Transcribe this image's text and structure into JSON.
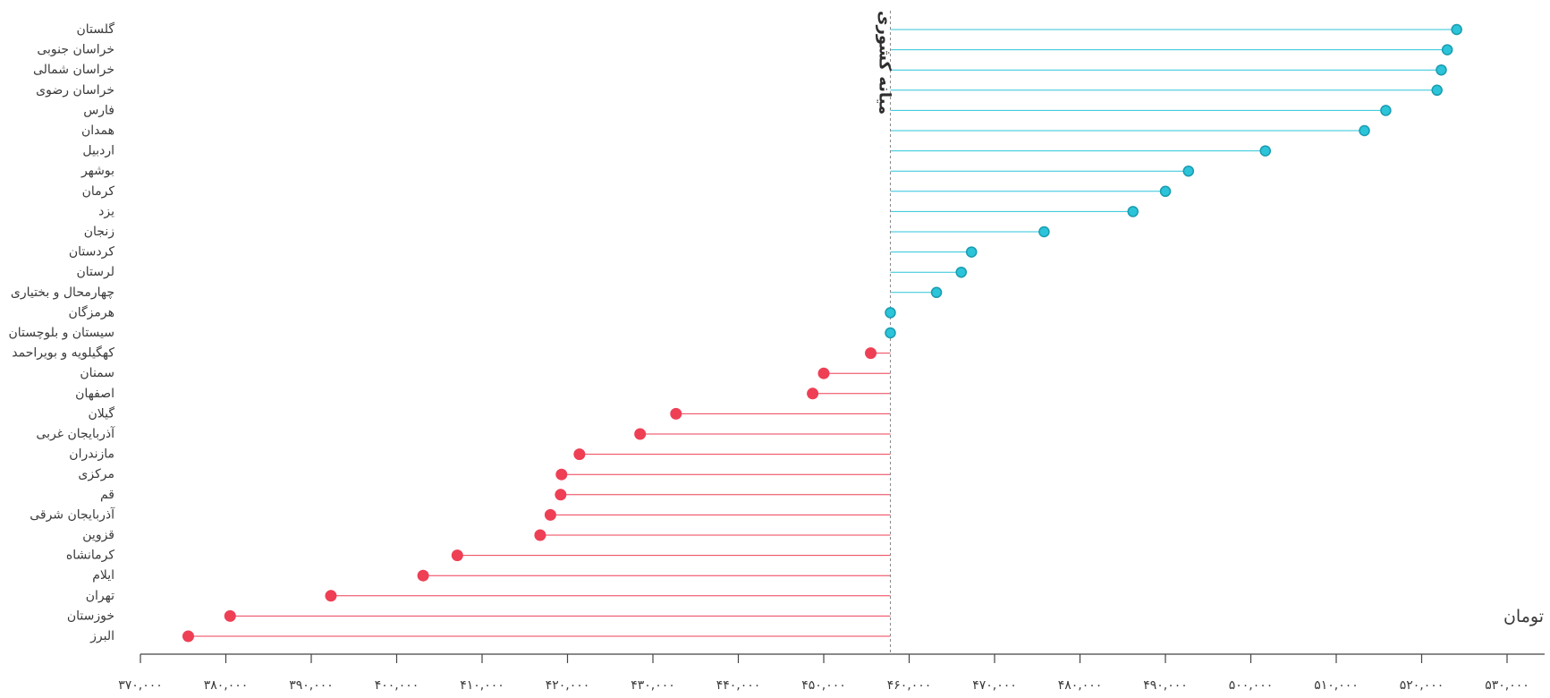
{
  "chart_data": {
    "type": "lollipop",
    "title": "",
    "xlabel": "تومان",
    "ylabel": "",
    "median": 457800,
    "median_label": "میانه کشوری",
    "xlim": [
      370000,
      530000
    ],
    "xticks": [
      370000,
      380000,
      390000,
      400000,
      410000,
      420000,
      430000,
      440000,
      450000,
      460000,
      470000,
      480000,
      490000,
      500000,
      510000,
      520000,
      530000
    ],
    "xtick_labels": [
      "۳۷۰,۰۰۰",
      "۳۸۰,۰۰۰",
      "۳۹۰,۰۰۰",
      "۴۰۰,۰۰۰",
      "۴۱۰,۰۰۰",
      "۴۲۰,۰۰۰",
      "۴۳۰,۰۰۰",
      "۴۴۰,۰۰۰",
      "۴۵۰,۰۰۰",
      "۴۶۰,۰۰۰",
      "۴۷۰,۰۰۰",
      "۴۸۰,۰۰۰",
      "۴۹۰,۰۰۰",
      "۵۰۰,۰۰۰",
      "۵۱۰,۰۰۰",
      "۵۲۰,۰۰۰",
      "۵۳۰,۰۰۰"
    ],
    "grid": false,
    "colors": {
      "above": "#2bc4d9",
      "below": "#ee3f55",
      "median_line": "#888888",
      "axis": "#444444"
    },
    "points": [
      {
        "label": "گلستان",
        "value": 524100
      },
      {
        "label": "خراسان جنوبی",
        "value": 523000
      },
      {
        "label": "خراسان شمالی",
        "value": 522300
      },
      {
        "label": "خراسان رضوی",
        "value": 521800
      },
      {
        "label": "فارس",
        "value": 515800
      },
      {
        "label": "همدان",
        "value": 513300
      },
      {
        "label": "اردبیل",
        "value": 501700
      },
      {
        "label": "بوشهر",
        "value": 492700
      },
      {
        "label": "کرمان",
        "value": 490000
      },
      {
        "label": "یزد",
        "value": 486200
      },
      {
        "label": "زنجان",
        "value": 475800
      },
      {
        "label": "کردستان",
        "value": 467300
      },
      {
        "label": "لرستان",
        "value": 466100
      },
      {
        "label": "چهارمحال و بختیاری",
        "value": 463200
      },
      {
        "label": "هرمزگان",
        "value": 457800
      },
      {
        "label": "سیستان و بلوچستان",
        "value": 457800
      },
      {
        "label": "کهگیلویه و بویراحمد",
        "value": 455500
      },
      {
        "label": "سمنان",
        "value": 450000
      },
      {
        "label": "اصفهان",
        "value": 448700
      },
      {
        "label": "گیلان",
        "value": 432700
      },
      {
        "label": "آذربایجان غربی",
        "value": 428500
      },
      {
        "label": "مازندران",
        "value": 421400
      },
      {
        "label": "مرکزی",
        "value": 419300
      },
      {
        "label": "قم",
        "value": 419200
      },
      {
        "label": "آذربایجان شرقی",
        "value": 418000
      },
      {
        "label": "قزوین",
        "value": 416800
      },
      {
        "label": "کرمانشاه",
        "value": 407100
      },
      {
        "label": "ایلام",
        "value": 403100
      },
      {
        "label": "تهران",
        "value": 392300
      },
      {
        "label": "خوزستان",
        "value": 380500
      },
      {
        "label": "البرز",
        "value": 375600
      }
    ]
  }
}
